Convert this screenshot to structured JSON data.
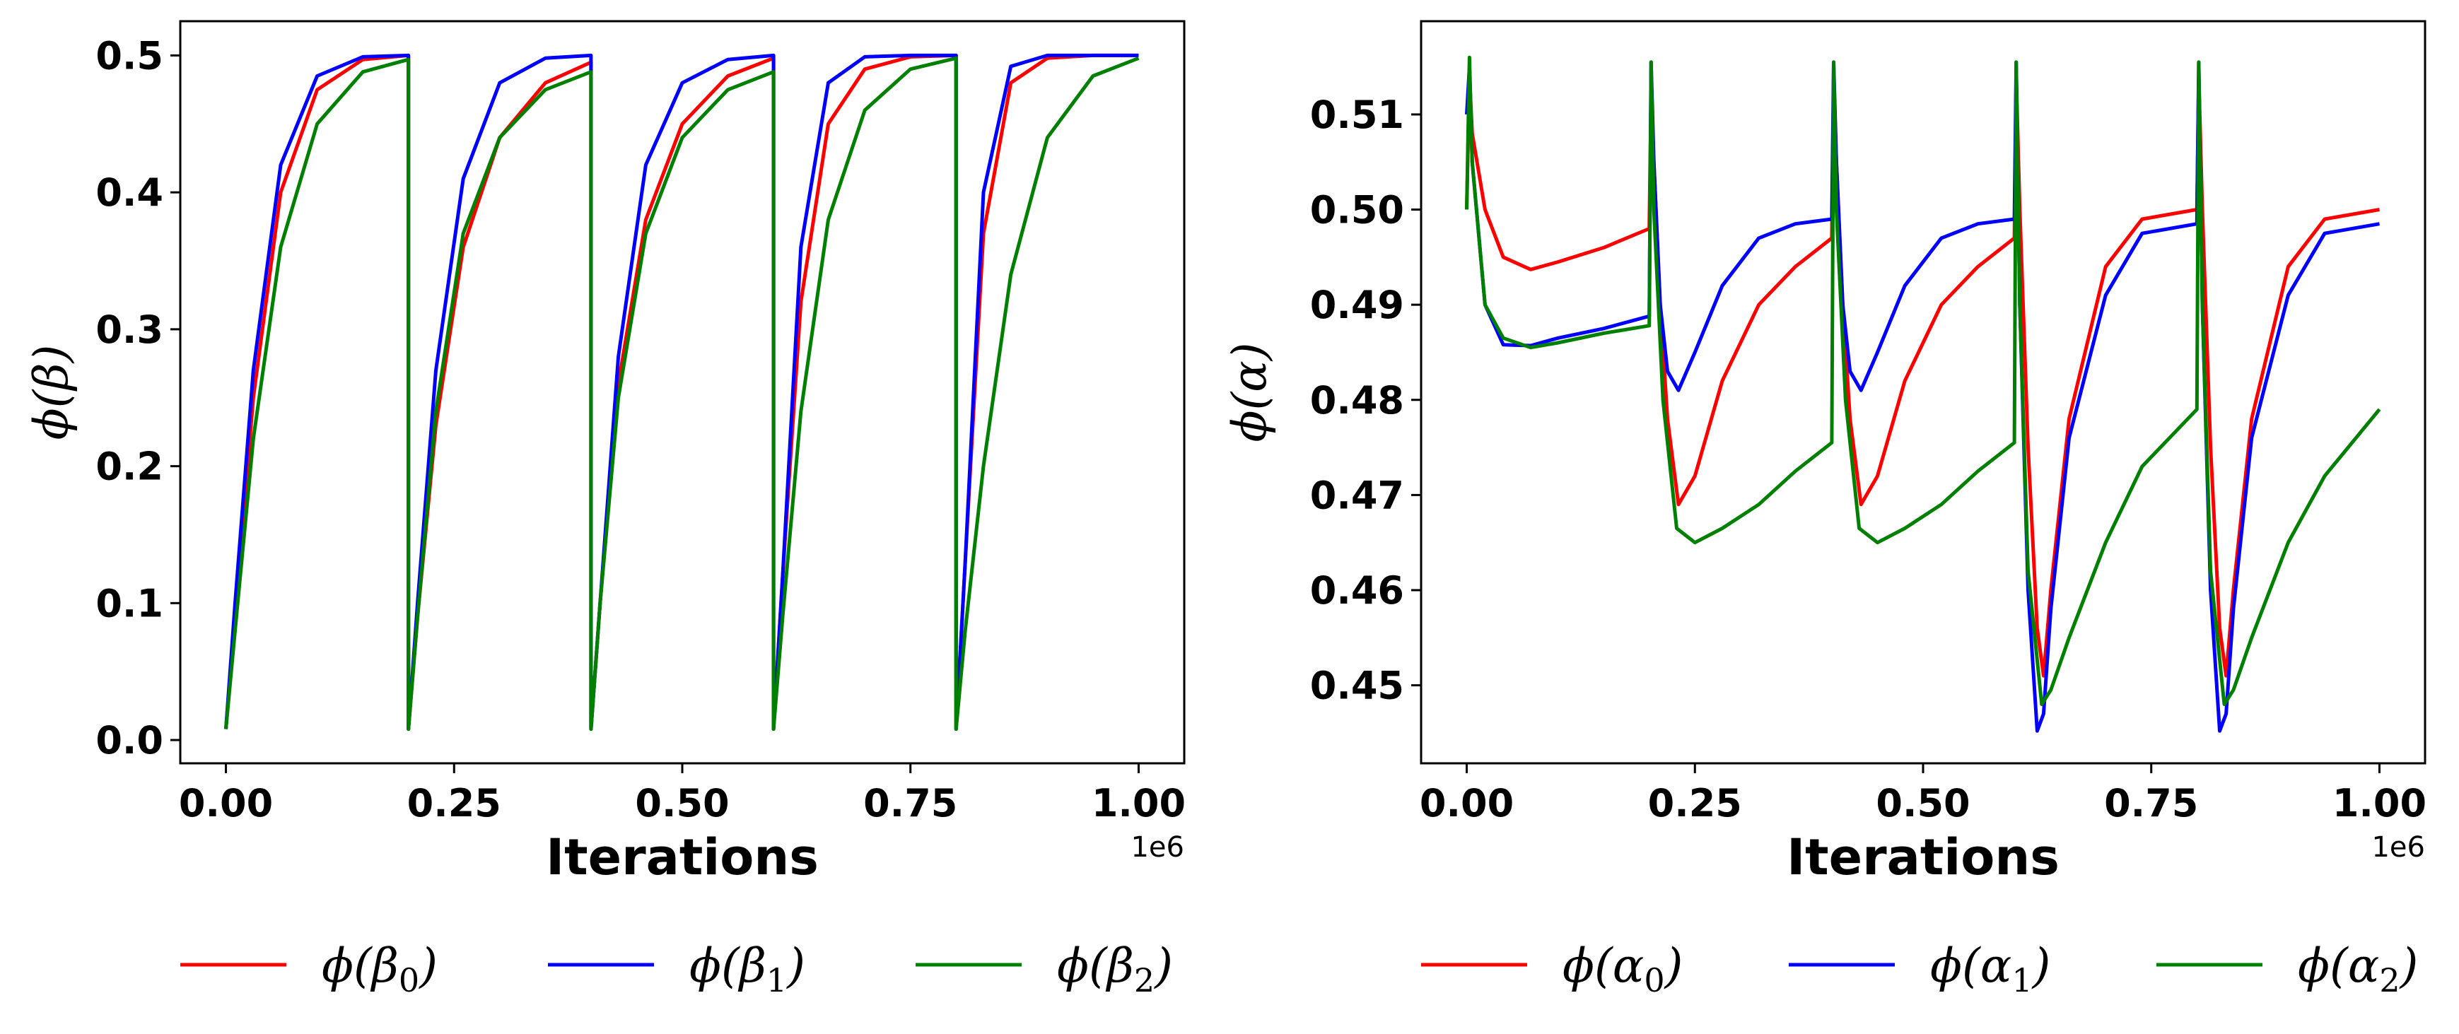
{
  "chart_data": [
    {
      "type": "line",
      "ylabel": "ϕ(β)",
      "xlabel": "Iterations",
      "x_offset_label": "1e6",
      "xlim": [
        -0.05,
        1.05
      ],
      "ylim": [
        -0.017,
        0.525
      ],
      "xticks": [
        0.0,
        0.25,
        0.5,
        0.75,
        1.0
      ],
      "xtick_labels": [
        "0.00",
        "0.25",
        "0.50",
        "0.75",
        "1.00"
      ],
      "yticks": [
        0.0,
        0.1,
        0.2,
        0.3,
        0.4,
        0.5
      ],
      "ytick_labels": [
        "0.0",
        "0.1",
        "0.2",
        "0.3",
        "0.4",
        "0.5"
      ],
      "legend_position": "bottom",
      "series": [
        {
          "name": "ϕ(β₀)",
          "label_base": "ϕ(β",
          "label_sub": "0",
          "color": "#ff0000",
          "x": [
            0,
            0.01,
            0.03,
            0.06,
            0.1,
            0.15,
            0.2,
            0.2,
            0.21,
            0.23,
            0.26,
            0.3,
            0.35,
            0.4,
            0.4,
            0.41,
            0.43,
            0.46,
            0.5,
            0.55,
            0.6,
            0.6,
            0.61,
            0.63,
            0.66,
            0.7,
            0.75,
            0.8,
            0.8,
            0.81,
            0.83,
            0.86,
            0.9,
            0.95,
            1.0
          ],
          "y": [
            0.008,
            0.09,
            0.25,
            0.4,
            0.475,
            0.497,
            0.5,
            0.008,
            0.09,
            0.23,
            0.36,
            0.44,
            0.48,
            0.495,
            0.008,
            0.1,
            0.26,
            0.38,
            0.45,
            0.485,
            0.498,
            0.008,
            0.12,
            0.32,
            0.45,
            0.49,
            0.499,
            0.5,
            0.008,
            0.13,
            0.37,
            0.48,
            0.498,
            0.5,
            0.5
          ]
        },
        {
          "name": "ϕ(β₁)",
          "label_base": "ϕ(β",
          "label_sub": "1",
          "color": "#0000ff",
          "x": [
            0,
            0.01,
            0.03,
            0.06,
            0.1,
            0.15,
            0.2,
            0.2,
            0.21,
            0.23,
            0.26,
            0.3,
            0.35,
            0.4,
            0.4,
            0.41,
            0.43,
            0.46,
            0.5,
            0.55,
            0.6,
            0.6,
            0.61,
            0.63,
            0.66,
            0.7,
            0.75,
            0.8,
            0.8,
            0.81,
            0.83,
            0.86,
            0.9,
            0.95,
            1.0
          ],
          "y": [
            0.008,
            0.1,
            0.27,
            0.42,
            0.485,
            0.499,
            0.5,
            0.008,
            0.1,
            0.27,
            0.41,
            0.48,
            0.498,
            0.5,
            0.008,
            0.1,
            0.28,
            0.42,
            0.48,
            0.497,
            0.5,
            0.008,
            0.12,
            0.36,
            0.48,
            0.499,
            0.5,
            0.5,
            0.008,
            0.13,
            0.4,
            0.492,
            0.5,
            0.5,
            0.5
          ]
        },
        {
          "name": "ϕ(β₂)",
          "label_base": "ϕ(β",
          "label_sub": "2",
          "color": "#008000",
          "x": [
            0,
            0.01,
            0.03,
            0.06,
            0.1,
            0.15,
            0.2,
            0.2,
            0.21,
            0.23,
            0.26,
            0.3,
            0.35,
            0.4,
            0.4,
            0.41,
            0.43,
            0.46,
            0.5,
            0.55,
            0.6,
            0.6,
            0.61,
            0.63,
            0.66,
            0.7,
            0.75,
            0.8,
            0.8,
            0.81,
            0.83,
            0.86,
            0.9,
            0.95,
            1.0
          ],
          "y": [
            0.008,
            0.08,
            0.22,
            0.36,
            0.45,
            0.488,
            0.497,
            0.008,
            0.09,
            0.24,
            0.37,
            0.44,
            0.475,
            0.488,
            0.008,
            0.1,
            0.25,
            0.37,
            0.44,
            0.475,
            0.488,
            0.008,
            0.09,
            0.24,
            0.38,
            0.46,
            0.49,
            0.498,
            0.008,
            0.08,
            0.2,
            0.34,
            0.44,
            0.485,
            0.498
          ]
        }
      ]
    },
    {
      "type": "line",
      "ylabel": "ϕ(α)",
      "xlabel": "Iterations",
      "x_offset_label": "1e6",
      "xlim": [
        -0.05,
        1.05
      ],
      "ylim": [
        0.4418,
        0.5198
      ],
      "xticks": [
        0.0,
        0.25,
        0.5,
        0.75,
        1.0
      ],
      "xtick_labels": [
        "0.00",
        "0.25",
        "0.50",
        "0.75",
        "1.00"
      ],
      "yticks": [
        0.45,
        0.46,
        0.47,
        0.48,
        0.49,
        0.5,
        0.51
      ],
      "ytick_labels": [
        "0.45",
        "0.46",
        "0.47",
        "0.48",
        "0.49",
        "0.50",
        "0.51"
      ],
      "legend_position": "bottom",
      "series": [
        {
          "name": "ϕ(α₀)",
          "label_base": "ϕ(α",
          "label_sub": "0",
          "color": "#ff0000",
          "x": [
            0,
            0.003,
            0.006,
            0.02,
            0.04,
            0.07,
            0.1,
            0.15,
            0.2,
            0.2,
            0.202,
            0.205,
            0.212,
            0.22,
            0.232,
            0.25,
            0.28,
            0.32,
            0.36,
            0.4,
            0.4,
            0.402,
            0.405,
            0.412,
            0.42,
            0.432,
            0.45,
            0.48,
            0.52,
            0.56,
            0.6,
            0.6,
            0.602,
            0.606,
            0.615,
            0.625,
            0.632,
            0.64,
            0.66,
            0.7,
            0.74,
            0.8,
            0.8,
            0.802,
            0.806,
            0.815,
            0.825,
            0.832,
            0.84,
            0.86,
            0.9,
            0.94,
            1.0
          ],
          "y": [
            0.5,
            0.514,
            0.508,
            0.5,
            0.495,
            0.4937,
            0.4945,
            0.496,
            0.498,
            0.498,
            0.512,
            0.505,
            0.49,
            0.478,
            0.469,
            0.472,
            0.482,
            0.49,
            0.494,
            0.497,
            0.497,
            0.514,
            0.505,
            0.49,
            0.478,
            0.469,
            0.472,
            0.482,
            0.49,
            0.494,
            0.497,
            0.497,
            0.514,
            0.5,
            0.475,
            0.456,
            0.451,
            0.46,
            0.478,
            0.494,
            0.499,
            0.5,
            0.5,
            0.514,
            0.5,
            0.475,
            0.456,
            0.451,
            0.46,
            0.478,
            0.494,
            0.499,
            0.5
          ]
        },
        {
          "name": "ϕ(α₁)",
          "label_base": "ϕ(α",
          "label_sub": "1",
          "color": "#0000ff",
          "x": [
            0,
            0.003,
            0.006,
            0.02,
            0.04,
            0.07,
            0.1,
            0.15,
            0.2,
            0.2,
            0.202,
            0.205,
            0.212,
            0.22,
            0.232,
            0.25,
            0.28,
            0.32,
            0.36,
            0.4,
            0.4,
            0.402,
            0.405,
            0.412,
            0.42,
            0.432,
            0.45,
            0.48,
            0.52,
            0.56,
            0.6,
            0.6,
            0.602,
            0.606,
            0.615,
            0.625,
            0.632,
            0.64,
            0.66,
            0.7,
            0.74,
            0.8,
            0.8,
            0.802,
            0.806,
            0.815,
            0.825,
            0.832,
            0.84,
            0.86,
            0.9,
            0.94,
            1.0
          ],
          "y": [
            0.51,
            0.515,
            0.505,
            0.49,
            0.4858,
            0.4857,
            0.4865,
            0.4875,
            0.4888,
            0.4888,
            0.5155,
            0.505,
            0.49,
            0.483,
            0.481,
            0.485,
            0.492,
            0.497,
            0.4985,
            0.499,
            0.499,
            0.5155,
            0.505,
            0.49,
            0.483,
            0.481,
            0.485,
            0.492,
            0.497,
            0.4985,
            0.499,
            0.499,
            0.5155,
            0.49,
            0.46,
            0.4452,
            0.447,
            0.458,
            0.476,
            0.491,
            0.4975,
            0.4985,
            0.4985,
            0.5155,
            0.49,
            0.46,
            0.4452,
            0.447,
            0.458,
            0.476,
            0.491,
            0.4975,
            0.4985
          ]
        },
        {
          "name": "ϕ(α₂)",
          "label_base": "ϕ(α",
          "label_sub": "2",
          "color": "#008000",
          "x": [
            0,
            0.003,
            0.006,
            0.02,
            0.04,
            0.07,
            0.1,
            0.15,
            0.2,
            0.2,
            0.202,
            0.205,
            0.215,
            0.23,
            0.25,
            0.28,
            0.32,
            0.36,
            0.4,
            0.4,
            0.402,
            0.405,
            0.415,
            0.43,
            0.45,
            0.48,
            0.52,
            0.56,
            0.6,
            0.6,
            0.602,
            0.606,
            0.615,
            0.63,
            0.64,
            0.66,
            0.7,
            0.74,
            0.8,
            0.8,
            0.802,
            0.806,
            0.815,
            0.83,
            0.84,
            0.86,
            0.9,
            0.94,
            1.0
          ],
          "y": [
            0.5,
            0.516,
            0.505,
            0.49,
            0.4865,
            0.4855,
            0.486,
            0.487,
            0.4878,
            0.4878,
            0.5155,
            0.5,
            0.48,
            0.4665,
            0.465,
            0.4665,
            0.469,
            0.4725,
            0.4755,
            0.4755,
            0.5155,
            0.5,
            0.48,
            0.4665,
            0.465,
            0.4665,
            0.469,
            0.4725,
            0.4755,
            0.4755,
            0.5155,
            0.49,
            0.462,
            0.448,
            0.4495,
            0.455,
            0.465,
            0.473,
            0.479,
            0.479,
            0.5155,
            0.49,
            0.462,
            0.448,
            0.4495,
            0.455,
            0.465,
            0.472,
            0.479
          ]
        }
      ]
    }
  ]
}
